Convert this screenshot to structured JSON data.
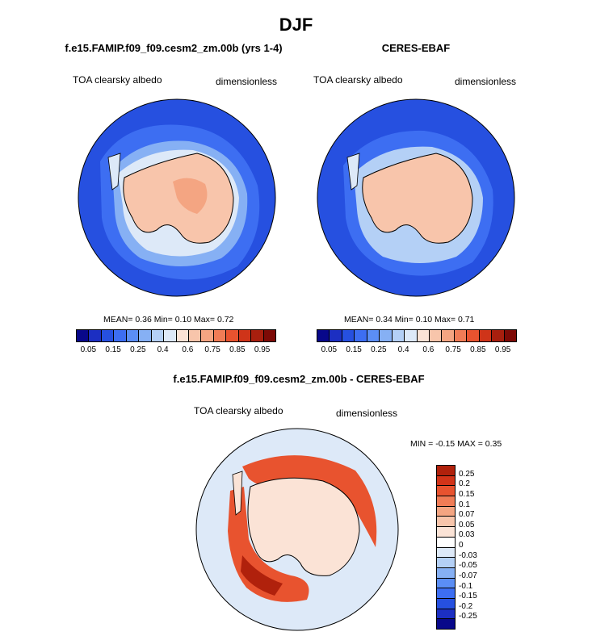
{
  "page_title": "DJF",
  "panels": [
    {
      "title": "f.e15.FAMIP.f09_f09.cesm2_zm.00b (yrs 1-4)",
      "variable": "TOA clearsky albedo",
      "units": "dimensionless",
      "stats": "MEAN=   0.36  Min=   0.10  Max=   0.72"
    },
    {
      "title": "CERES-EBAF",
      "variable": "TOA clearsky albedo",
      "units": "dimensionless",
      "stats": "MEAN=   0.34  Min=   0.10  Max=   0.71"
    },
    {
      "title": "f.e15.FAMIP.f09_f09.cesm2_zm.00b - CERES-EBAF",
      "variable": "TOA clearsky albedo",
      "units": "dimensionless",
      "stats": "MIN =  -0.15 MAX =   0.35"
    }
  ],
  "colorbar_abs": {
    "colors": [
      "#08088a",
      "#1c2fc2",
      "#2650e0",
      "#3d6ef2",
      "#5b8ef5",
      "#86b0f4",
      "#b4d0f6",
      "#dde9f8",
      "#fbe3d6",
      "#f8c5ab",
      "#f4a582",
      "#f07c56",
      "#e8532f",
      "#cf3419",
      "#a81f0e",
      "#7d0a06"
    ],
    "ticks": [
      "0.05",
      "0.15",
      "0.25",
      "0.4",
      "0.6",
      "0.75",
      "0.85",
      "0.95"
    ]
  },
  "colorbar_diff": {
    "colors": [
      "#b0210c",
      "#d23419",
      "#e8532f",
      "#f07c56",
      "#f4a582",
      "#f8c5ab",
      "#fbe3d6",
      "#ffffff",
      "#dde9f8",
      "#b4d0f6",
      "#86b0f4",
      "#5b8ef5",
      "#3d6ef2",
      "#2650e0",
      "#1c2fc2",
      "#08088a"
    ],
    "ticks": [
      "0.25",
      "0.2",
      "0.15",
      "0.1",
      "0.07",
      "0.05",
      "0.03",
      "0",
      "-0.03",
      "-0.05",
      "-0.07",
      "-0.1",
      "-0.15",
      "-0.2",
      "-0.25"
    ]
  },
  "colors": {
    "ocean_deep": "#2650e0",
    "ocean_mid": "#3d6ef2",
    "seaice_light": "#b4d0f6",
    "seaice_pale": "#dde9f8",
    "land_low": "#fbe3d6",
    "land_mid": "#f8c5ab",
    "land_high": "#f4a582",
    "diff_bg": "#dde9f8",
    "diff_pos": "#e8532f",
    "diff_pos_strong": "#b0210c",
    "diff_land": "#fbe3d6"
  }
}
